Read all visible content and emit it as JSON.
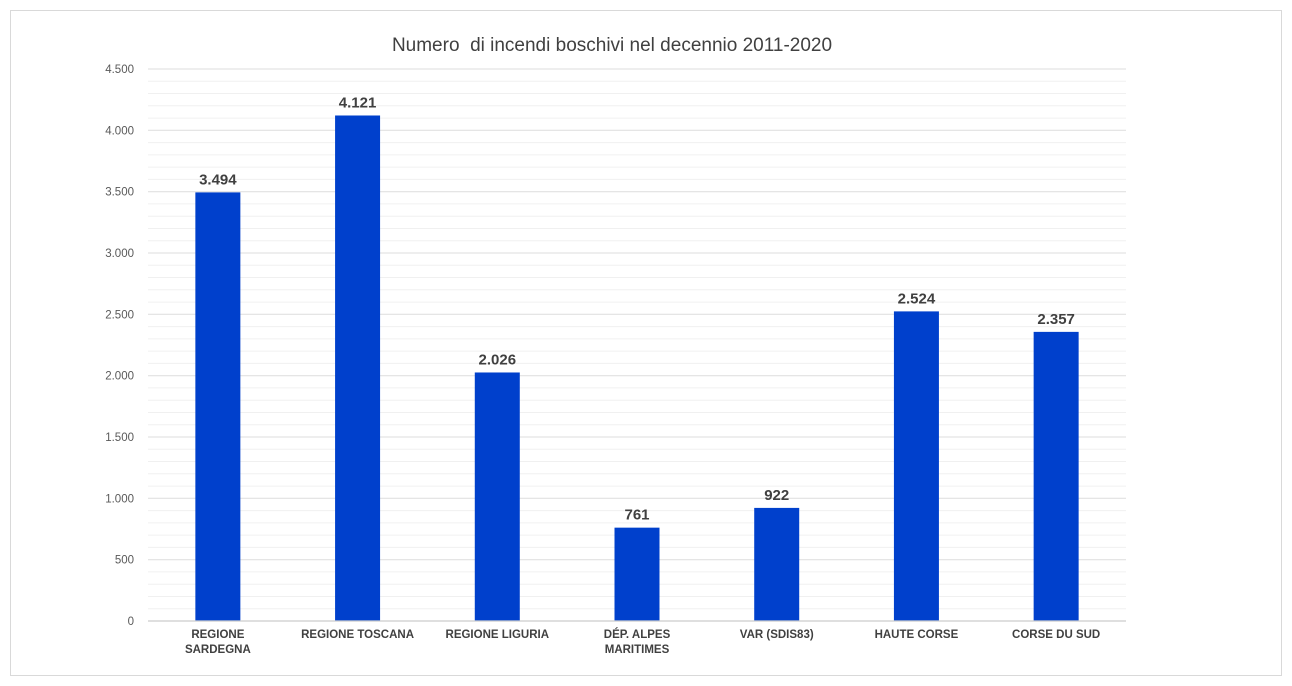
{
  "chart_data": {
    "type": "bar",
    "title": "Numero  di incendi boschivi nel decennio 2011-2020",
    "xlabel": "",
    "ylabel": "",
    "categories": [
      [
        "REGIONE",
        "SARDEGNA"
      ],
      [
        "REGIONE TOSCANA"
      ],
      [
        "REGIONE LIGURIA"
      ],
      [
        "DÉP. ALPES",
        "MARITIMES"
      ],
      [
        "VAR (SDIS83)"
      ],
      [
        "HAUTE CORSE"
      ],
      [
        "CORSE DU SUD"
      ]
    ],
    "values": [
      3494,
      4121,
      2026,
      761,
      922,
      2524,
      2357
    ],
    "data_labels": [
      "3.494",
      "4.121",
      "2.026",
      "761",
      "922",
      "2.524",
      "2.357"
    ],
    "ylim": [
      0,
      4500
    ],
    "yticks": [
      0,
      500,
      1000,
      1500,
      2000,
      2500,
      3000,
      3500,
      4000,
      4500
    ],
    "ytick_labels": [
      "0",
      "500",
      "1.000",
      "1.500",
      "2.000",
      "2.500",
      "3.000",
      "3.500",
      "4.000",
      "4.500"
    ],
    "grid": true,
    "legend": "none",
    "bar_color": "#0040cc",
    "gridline_color": "#e3e3e3"
  }
}
